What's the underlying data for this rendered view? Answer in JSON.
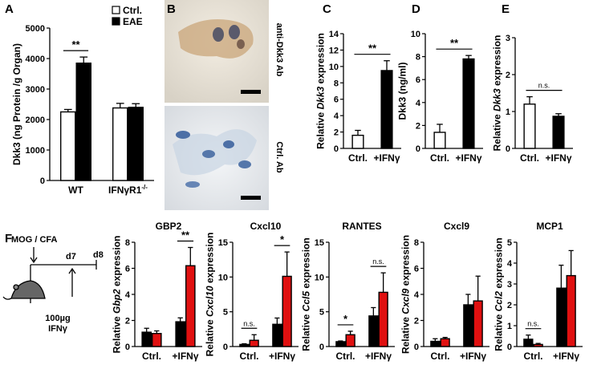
{
  "chart_data": [
    {
      "type": "bar",
      "panel": "A",
      "ylabel": [
        "Dkk3 (ng Protein /g Organ)"
      ],
      "categories": [
        "WT",
        "IFNγR1"
      ],
      "category_superscript": [
        null,
        "-/-"
      ],
      "series": [
        {
          "name": "Ctrl.",
          "color": "#ffffff",
          "values": [
            2250,
            2380
          ],
          "errors": [
            80,
            150
          ]
        },
        {
          "name": "EAE",
          "color": "#000000",
          "values": [
            3850,
            2400
          ],
          "errors": [
            200,
            120
          ]
        }
      ],
      "ylim": [
        0,
        5000
      ],
      "yticks": [
        0,
        1000,
        2000,
        3000,
        4000,
        5000
      ],
      "annotations": [
        {
          "text": "**",
          "category": 0
        }
      ]
    },
    {
      "type": "bar",
      "panel": "C",
      "ylabel": [
        "Relative ",
        "Dkk3",
        " expression"
      ],
      "ylabel_italic": 1,
      "categories": [
        "Ctrl.",
        "+IFNγ"
      ],
      "series": [
        {
          "colors": [
            "#ffffff",
            "#000000"
          ],
          "values": [
            1.6,
            9.5
          ],
          "errors": [
            0.6,
            1.2
          ]
        }
      ],
      "ylim": [
        0,
        14
      ],
      "yticks": [
        0,
        2,
        4,
        6,
        8,
        10,
        12,
        14
      ],
      "annotations": [
        {
          "text": "**"
        }
      ]
    },
    {
      "type": "bar",
      "panel": "D",
      "ylabel": [
        "Dkk3 (ng/ml)"
      ],
      "categories": [
        "Ctrl.",
        "+IFNγ"
      ],
      "series": [
        {
          "colors": [
            "#ffffff",
            "#000000"
          ],
          "values": [
            1.4,
            7.8
          ],
          "errors": [
            0.7,
            0.3
          ]
        }
      ],
      "ylim": [
        0,
        10
      ],
      "yticks": [
        0,
        2,
        4,
        6,
        8,
        10
      ],
      "annotations": [
        {
          "text": "**"
        }
      ]
    },
    {
      "type": "bar",
      "panel": "E",
      "ylabel": [
        "Relative ",
        "Dkk3",
        " expression"
      ],
      "ylabel_italic": 1,
      "categories": [
        "Ctrl.",
        "+IFNγ"
      ],
      "series": [
        {
          "colors": [
            "#ffffff",
            "#000000"
          ],
          "values": [
            1.2,
            0.87
          ],
          "errors": [
            0.2,
            0.07
          ]
        }
      ],
      "ylim": [
        0,
        3
      ],
      "yticks": [
        0,
        1,
        2,
        3
      ],
      "annotations": [
        {
          "text": "n.s."
        }
      ]
    },
    {
      "type": "bar",
      "title": "GBP2",
      "ylabel": [
        "Relative ",
        "Gbp2",
        " expression"
      ],
      "ylabel_italic": 1,
      "categories": [
        "Ctrl.",
        "+IFNγ"
      ],
      "series": [
        {
          "color": "#000000",
          "values": [
            1.1,
            1.9
          ],
          "errors": [
            0.3,
            0.3
          ]
        },
        {
          "color": "#e01010",
          "values": [
            1.0,
            6.2
          ],
          "errors": [
            0.2,
            1.4
          ]
        }
      ],
      "ylim": [
        0,
        8
      ],
      "yticks": [
        0,
        2,
        4,
        6,
        8
      ],
      "annotations": [
        {
          "text": "**",
          "category": 1
        }
      ]
    },
    {
      "type": "bar",
      "title": "Cxcl10",
      "ylabel": [
        "Relative ",
        "Cxcl10",
        " expression"
      ],
      "ylabel_italic": 1,
      "categories": [
        "Ctrl.",
        "+IFNγ"
      ],
      "series": [
        {
          "color": "#000000",
          "values": [
            0.3,
            3.2
          ],
          "errors": [
            0.1,
            0.9
          ]
        },
        {
          "color": "#e01010",
          "values": [
            0.9,
            10.1
          ],
          "errors": [
            0.8,
            3.5
          ]
        }
      ],
      "ylim": [
        0,
        15
      ],
      "yticks": [
        0,
        5,
        10,
        15
      ],
      "annotations": [
        {
          "text": "n.s.",
          "category": 0
        },
        {
          "text": "*",
          "category": 1
        }
      ]
    },
    {
      "type": "bar",
      "title": "RANTES",
      "ylabel": [
        "Relative ",
        "Ccl5",
        " expression"
      ],
      "ylabel_italic": 1,
      "categories": [
        "Ctrl.",
        "+IFNγ"
      ],
      "series": [
        {
          "color": "#000000",
          "values": [
            0.7,
            4.4
          ],
          "errors": [
            0.1,
            1.2
          ]
        },
        {
          "color": "#e01010",
          "values": [
            1.7,
            7.8
          ],
          "errors": [
            0.5,
            2.8
          ]
        }
      ],
      "ylim": [
        0,
        15
      ],
      "yticks": [
        0,
        5,
        10,
        15
      ],
      "annotations": [
        {
          "text": "*",
          "category": 0
        },
        {
          "text": "n.s.",
          "category": 1
        }
      ]
    },
    {
      "type": "bar",
      "title": "Cxcl9",
      "ylabel": [
        "Relative ",
        "Cxcl9",
        " expression"
      ],
      "ylabel_italic": 1,
      "categories": [
        "Ctrl.",
        "+IFNγ"
      ],
      "series": [
        {
          "color": "#000000",
          "values": [
            0.4,
            3.2
          ],
          "errors": [
            0.2,
            0.8
          ]
        },
        {
          "color": "#e01010",
          "values": [
            0.6,
            3.5
          ],
          "errors": [
            0.1,
            1.9
          ]
        }
      ],
      "ylim": [
        0,
        8
      ],
      "yticks": [
        0,
        2,
        4,
        6,
        8
      ],
      "annotations": []
    },
    {
      "type": "bar",
      "title": "MCP1",
      "ylabel": [
        "Relative ",
        "Ccl2",
        " expression"
      ],
      "ylabel_italic": 1,
      "categories": [
        "Ctrl.",
        "+IFNγ"
      ],
      "series": [
        {
          "color": "#000000",
          "values": [
            0.35,
            2.8
          ],
          "errors": [
            0.2,
            1.1
          ]
        },
        {
          "color": "#e01010",
          "values": [
            0.1,
            3.4
          ],
          "errors": [
            0.05,
            1.2
          ]
        }
      ],
      "ylim": [
        0,
        5
      ],
      "yticks": [
        0,
        1,
        2,
        3,
        4,
        5
      ],
      "annotations": [
        {
          "text": "n.s.",
          "category": 0
        }
      ]
    }
  ],
  "image_panel": {
    "panel": "B",
    "captions": [
      "anti-Dkk3 Ab",
      "Ctrl. Ab"
    ]
  },
  "timeline": {
    "panel": "F",
    "immunization": "MOG / CFA",
    "day_treat": "d7",
    "day_end": "d8",
    "dose": "100µg",
    "agent": "IFNγ"
  }
}
